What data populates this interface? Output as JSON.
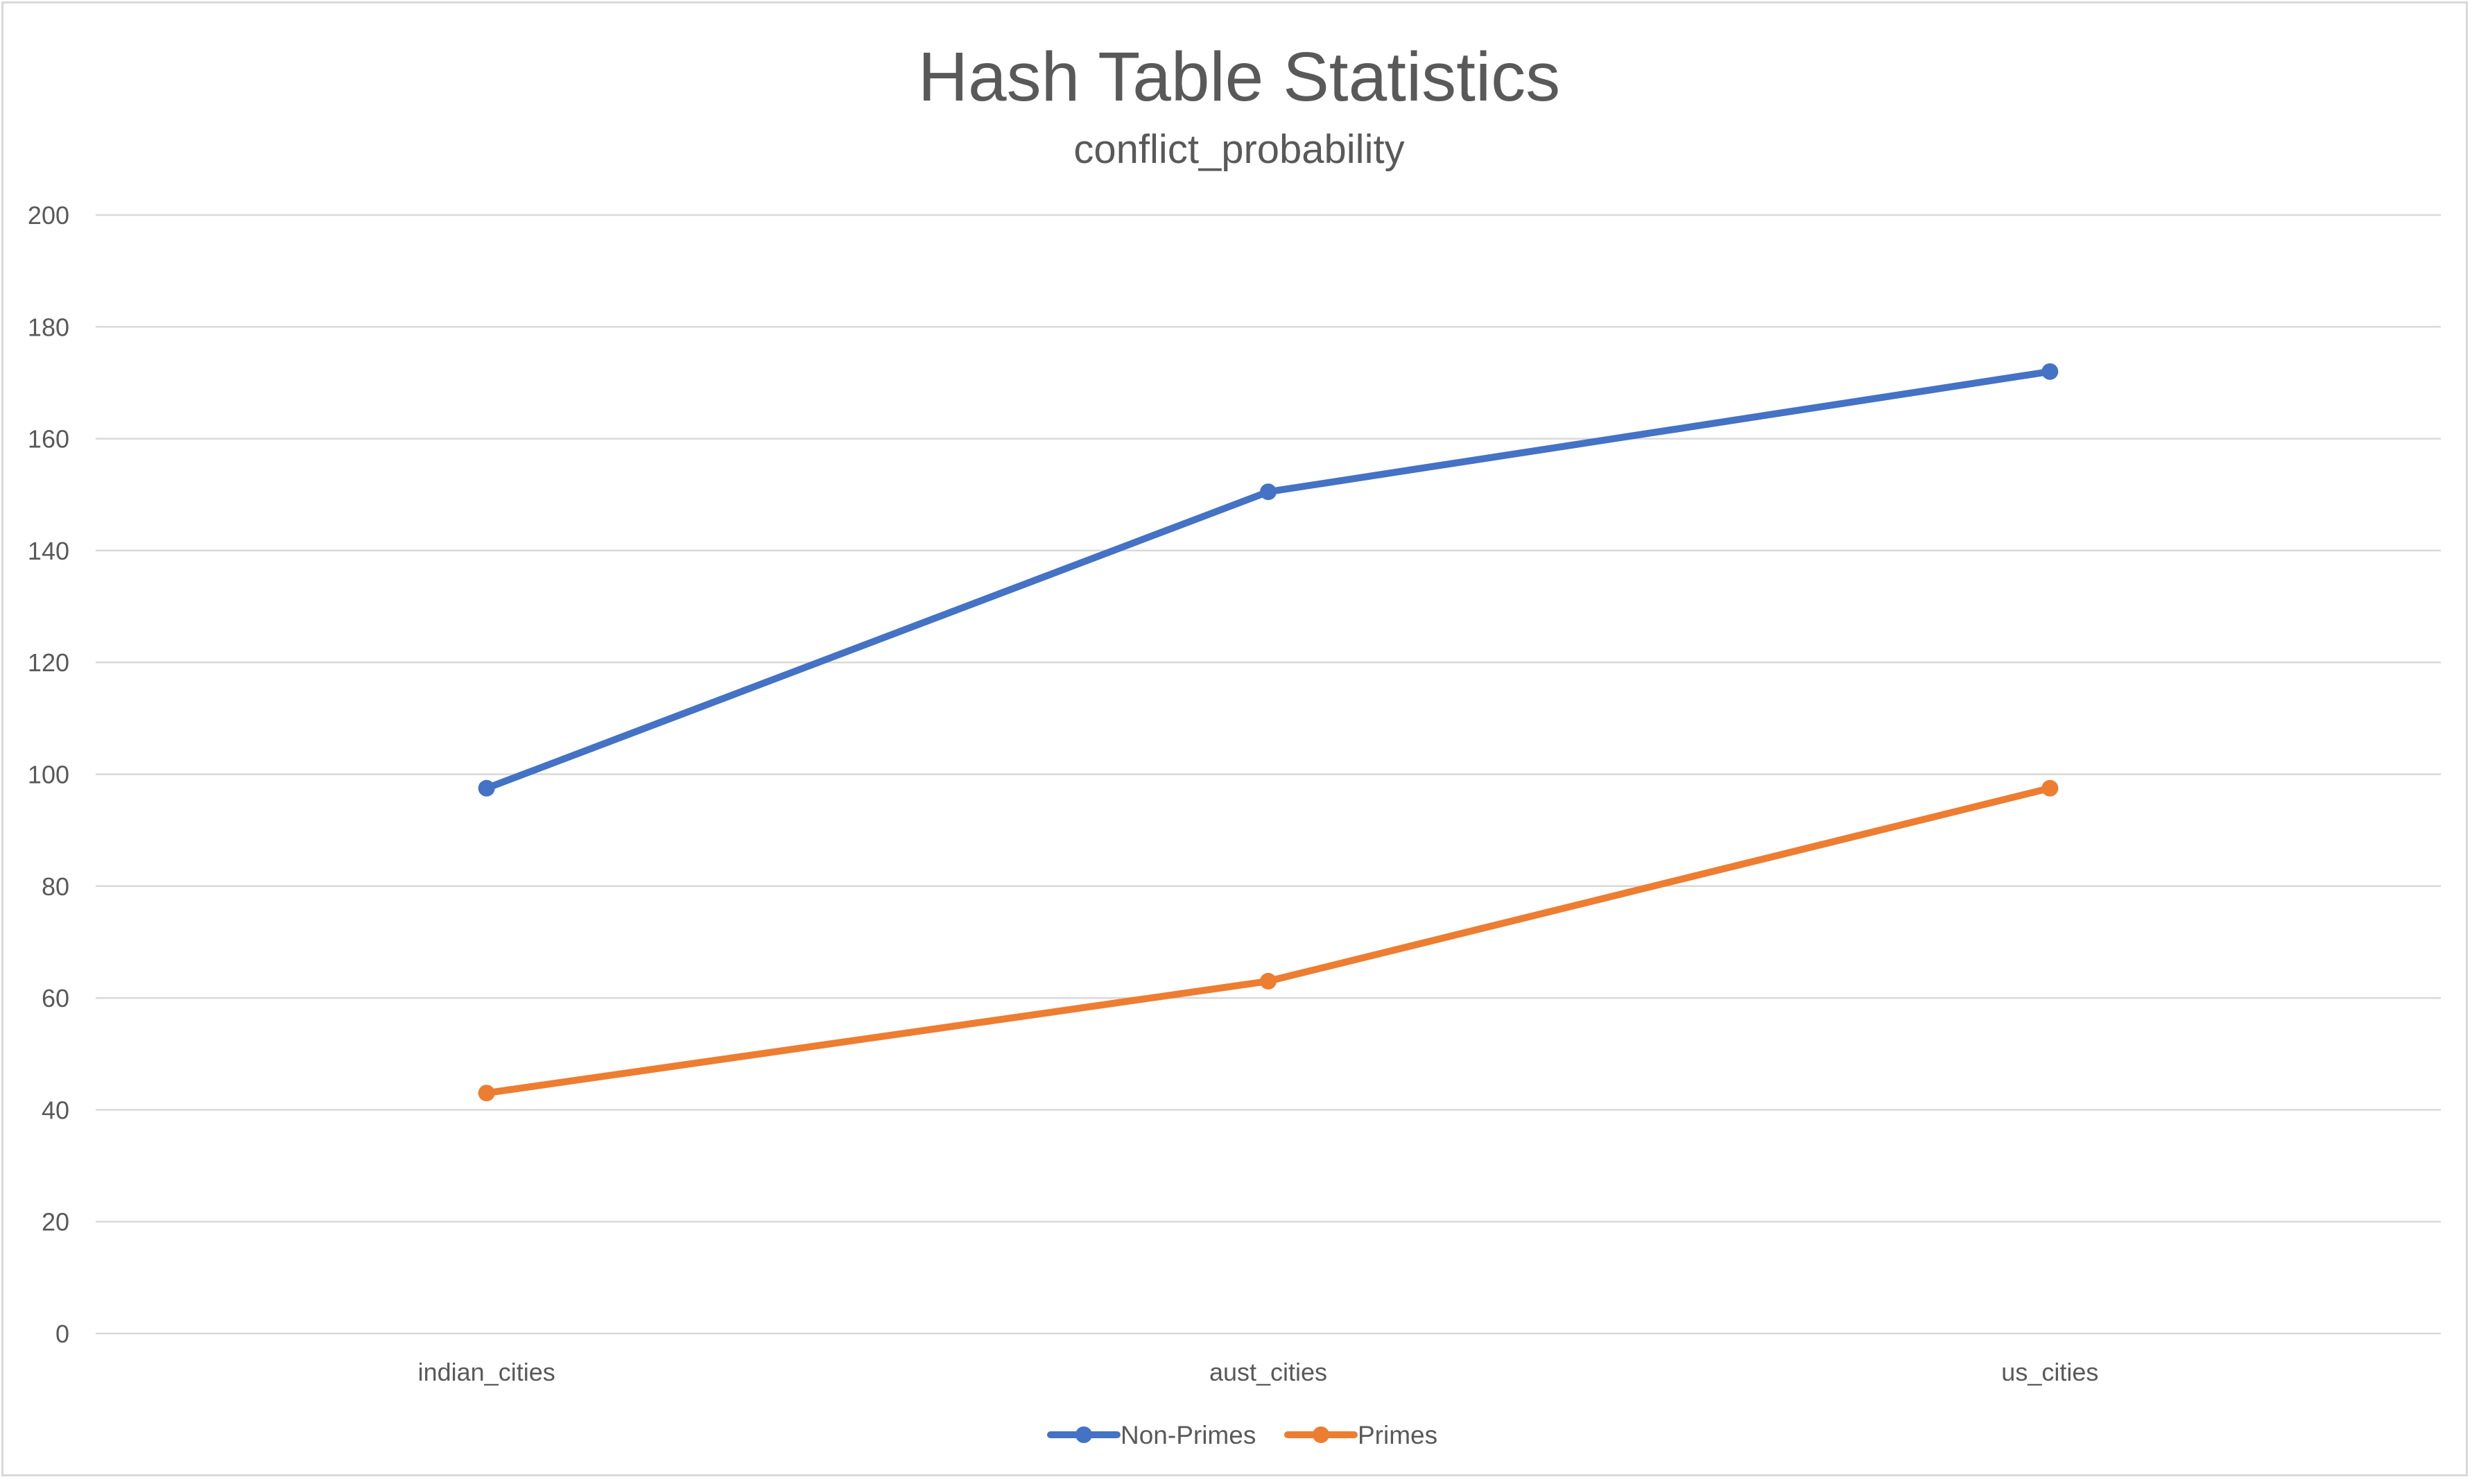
{
  "chart_data": {
    "type": "line",
    "title": "Hash Table Statistics",
    "subtitle": "conflict_probability",
    "xlabel": "",
    "ylabel": "",
    "categories": [
      "indian_cities",
      "aust_cities",
      "us_cities"
    ],
    "series": [
      {
        "name": "Non-Primes",
        "color": "#4472c4",
        "values": [
          97.5,
          150.5,
          172
        ]
      },
      {
        "name": "Primes",
        "color": "#ed7d31",
        "values": [
          43,
          63,
          97.5
        ]
      }
    ],
    "ylim": [
      0,
      200
    ],
    "yticks": [
      0,
      20,
      40,
      60,
      80,
      100,
      120,
      140,
      160,
      180,
      200
    ],
    "grid": true,
    "legend_position": "bottom"
  }
}
